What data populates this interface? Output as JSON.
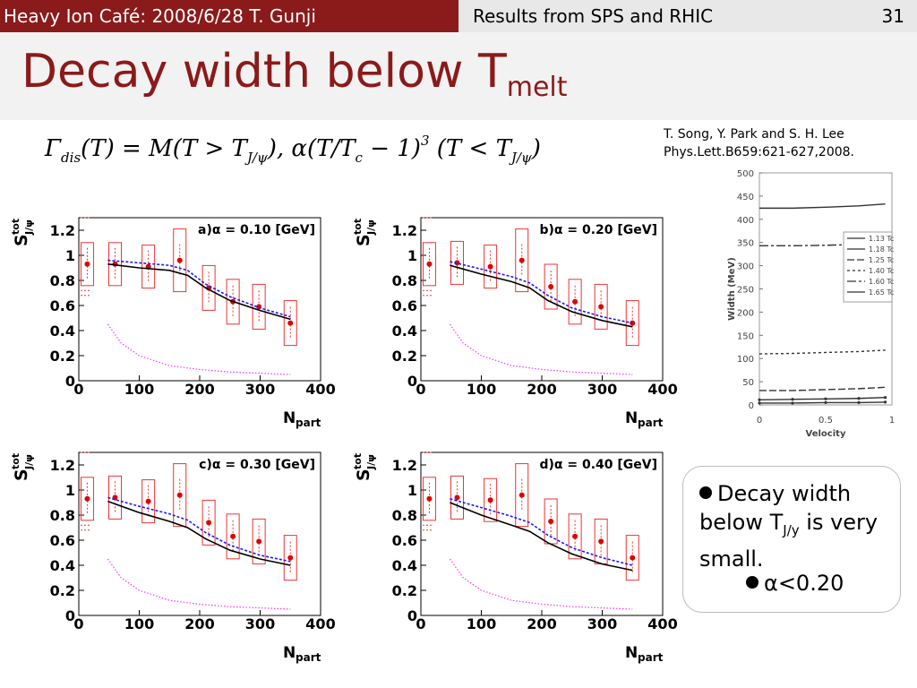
{
  "header": {
    "left": "Heavy Ion Café: 2008/6/28 T. Gunji",
    "right": "Results from SPS and RHIC",
    "page": "31",
    "left_bg": "#8b1a1a",
    "right_bg": "#e8e8e8"
  },
  "title": {
    "main": "Decay width below T",
    "sub": "melt"
  },
  "formula": {
    "p1": "Γ",
    "p1_sub": "dis",
    "p2": "(T) = M(T > T",
    "p2_sub": "J/ψ",
    "p3": "), α(T/T",
    "p3_sub": "c",
    "p4": " − 1)",
    "p4_sup": "3",
    "p5": " (T < T",
    "p5_sub": "J/ψ",
    "p6": ")"
  },
  "reference": {
    "line1": "T. Song, Y. Park and S. H. Lee",
    "line2": "Phys.Lett.B659:621-627,2008."
  },
  "bullets": {
    "main_a": "Decay width below T",
    "main_sub": "J/y",
    "main_b": " is very small.",
    "sub": "α<0.20"
  },
  "chart_data": [
    {
      "type": "line",
      "title": "a)α = 0.10 [GeV]",
      "xlabel": "N_part",
      "ylabel": "S^tot_J/ψ",
      "xlim": [
        0,
        400
      ],
      "ylim": [
        0,
        1.3
      ],
      "xticks": [
        "0",
        "100",
        "200",
        "300",
        "400"
      ],
      "yticks": [
        "0",
        "0.2",
        "0.4",
        "0.6",
        "0.8",
        "1",
        "1.2"
      ],
      "data_points": {
        "x": [
          14,
          60,
          115,
          167,
          215,
          255,
          298,
          350
        ],
        "y": [
          0.93,
          0.93,
          0.91,
          0.96,
          0.74,
          0.63,
          0.59,
          0.46
        ]
      },
      "series": [
        {
          "name": "",
          "color": "#000000",
          "x": [
            48,
            100,
            150,
            180,
            210,
            250,
            300,
            350
          ],
          "y": [
            0.93,
            0.9,
            0.88,
            0.84,
            0.74,
            0.64,
            0.56,
            0.49
          ]
        },
        {
          "name": "",
          "color": "#1a1aff",
          "x": [
            48,
            100,
            150,
            180,
            210,
            250,
            300,
            350
          ],
          "y": [
            0.96,
            0.94,
            0.92,
            0.88,
            0.77,
            0.67,
            0.58,
            0.51
          ]
        },
        {
          "name": "",
          "color": "#ff33ff",
          "x": [
            48,
            70,
            100,
            150,
            200,
            250,
            300,
            350
          ],
          "y": [
            0.45,
            0.3,
            0.2,
            0.12,
            0.09,
            0.07,
            0.06,
            0.05
          ]
        }
      ]
    },
    {
      "type": "line",
      "title": "b)α = 0.20 [GeV]",
      "xlabel": "N_part",
      "ylabel": "S^tot_J/ψ",
      "xlim": [
        0,
        400
      ],
      "ylim": [
        0,
        1.3
      ],
      "xticks": [
        "0",
        "100",
        "200",
        "300",
        "400"
      ],
      "yticks": [
        "0",
        "0.2",
        "0.4",
        "0.6",
        "0.8",
        "1",
        "1.2"
      ],
      "data_points": {
        "x": [
          14,
          60,
          115,
          167,
          215,
          255,
          298,
          350
        ],
        "y": [
          0.93,
          0.94,
          0.91,
          0.96,
          0.75,
          0.63,
          0.59,
          0.46
        ]
      },
      "series": [
        {
          "name": "",
          "color": "#000000",
          "x": [
            48,
            100,
            150,
            180,
            210,
            250,
            300,
            350
          ],
          "y": [
            0.92,
            0.85,
            0.79,
            0.74,
            0.64,
            0.55,
            0.48,
            0.43
          ]
        },
        {
          "name": "",
          "color": "#1a1aff",
          "x": [
            48,
            100,
            150,
            180,
            210,
            250,
            300,
            350
          ],
          "y": [
            0.95,
            0.89,
            0.83,
            0.78,
            0.68,
            0.58,
            0.51,
            0.46
          ]
        },
        {
          "name": "",
          "color": "#ff33ff",
          "x": [
            48,
            70,
            100,
            150,
            200,
            250,
            300,
            350
          ],
          "y": [
            0.45,
            0.3,
            0.2,
            0.12,
            0.09,
            0.07,
            0.06,
            0.05
          ]
        }
      ]
    },
    {
      "type": "line",
      "title": "c)α = 0.30 [GeV]",
      "xlabel": "N_part",
      "ylabel": "S^tot_J/ψ",
      "xlim": [
        0,
        400
      ],
      "ylim": [
        0,
        1.3
      ],
      "xticks": [
        "0",
        "100",
        "200",
        "300",
        "400"
      ],
      "yticks": [
        "0",
        "0.2",
        "0.4",
        "0.6",
        "0.8",
        "1",
        "1.2"
      ],
      "data_points": {
        "x": [
          14,
          60,
          115,
          167,
          215,
          255,
          298,
          350
        ],
        "y": [
          0.93,
          0.94,
          0.91,
          0.96,
          0.74,
          0.63,
          0.59,
          0.46
        ]
      },
      "series": [
        {
          "name": "",
          "color": "#000000",
          "x": [
            48,
            100,
            150,
            180,
            210,
            250,
            300,
            350
          ],
          "y": [
            0.91,
            0.82,
            0.75,
            0.7,
            0.61,
            0.52,
            0.45,
            0.4
          ]
        },
        {
          "name": "",
          "color": "#1a1aff",
          "x": [
            48,
            100,
            150,
            180,
            210,
            250,
            300,
            350
          ],
          "y": [
            0.94,
            0.87,
            0.81,
            0.76,
            0.66,
            0.56,
            0.48,
            0.43
          ]
        },
        {
          "name": "",
          "color": "#ff33ff",
          "x": [
            48,
            70,
            100,
            150,
            200,
            250,
            300,
            350
          ],
          "y": [
            0.45,
            0.3,
            0.2,
            0.12,
            0.09,
            0.07,
            0.06,
            0.05
          ]
        }
      ]
    },
    {
      "type": "line",
      "title": "d)α = 0.40 [GeV]",
      "xlabel": "N_part",
      "ylabel": "S^tot_J/ψ",
      "xlim": [
        0,
        400
      ],
      "ylim": [
        0,
        1.3
      ],
      "xticks": [
        "0",
        "100",
        "200",
        "300",
        "400"
      ],
      "yticks": [
        "0",
        "0.2",
        "0.4",
        "0.6",
        "0.8",
        "1",
        "1.2"
      ],
      "data_points": {
        "x": [
          14,
          60,
          115,
          167,
          215,
          255,
          298,
          350
        ],
        "y": [
          0.93,
          0.94,
          0.92,
          0.96,
          0.75,
          0.63,
          0.59,
          0.46
        ]
      },
      "series": [
        {
          "name": "",
          "color": "#000000",
          "x": [
            48,
            100,
            150,
            180,
            210,
            250,
            300,
            350
          ],
          "y": [
            0.9,
            0.8,
            0.72,
            0.67,
            0.58,
            0.49,
            0.41,
            0.36
          ]
        },
        {
          "name": "",
          "color": "#1a1aff",
          "x": [
            48,
            100,
            150,
            180,
            210,
            250,
            300,
            350
          ],
          "y": [
            0.93,
            0.86,
            0.79,
            0.74,
            0.64,
            0.54,
            0.46,
            0.4
          ]
        },
        {
          "name": "",
          "color": "#ff33ff",
          "x": [
            48,
            70,
            100,
            150,
            200,
            250,
            300,
            350
          ],
          "y": [
            0.45,
            0.3,
            0.2,
            0.12,
            0.09,
            0.07,
            0.06,
            0.05
          ]
        }
      ]
    },
    {
      "type": "line",
      "title": "",
      "xlabel": "Velocity",
      "ylabel": "Width (MeV)",
      "xlim": [
        0,
        1
      ],
      "ylim": [
        0,
        500
      ],
      "xticks": [
        "0",
        "0.5",
        "1"
      ],
      "yticks": [
        "0",
        "50",
        "100",
        "150",
        "200",
        "250",
        "300",
        "350",
        "400",
        "450",
        "500"
      ],
      "series": [
        {
          "name": "1.13 Tc",
          "x": [
            0,
            0.25,
            0.5,
            0.75,
            0.95
          ],
          "y": [
            4,
            4,
            5,
            5,
            6
          ]
        },
        {
          "name": "1.18 Tc",
          "x": [
            0,
            0.25,
            0.5,
            0.75,
            0.95
          ],
          "y": [
            11,
            12,
            13,
            14,
            16
          ]
        },
        {
          "name": "1.25 Tc",
          "x": [
            0,
            0.25,
            0.5,
            0.75,
            0.95
          ],
          "y": [
            31,
            31,
            33,
            35,
            38
          ]
        },
        {
          "name": "1.40 Tc",
          "x": [
            0,
            0.25,
            0.5,
            0.75,
            0.95
          ],
          "y": [
            110,
            111,
            113,
            115,
            118
          ]
        },
        {
          "name": "1.60 Tc",
          "x": [
            0,
            0.25,
            0.5,
            0.75,
            0.95
          ],
          "y": [
            343,
            343,
            344,
            346,
            349
          ]
        },
        {
          "name": "1.65 Tc",
          "x": [
            0,
            0.25,
            0.5,
            0.75,
            0.95
          ],
          "y": [
            424,
            424,
            426,
            429,
            433
          ]
        }
      ]
    }
  ]
}
